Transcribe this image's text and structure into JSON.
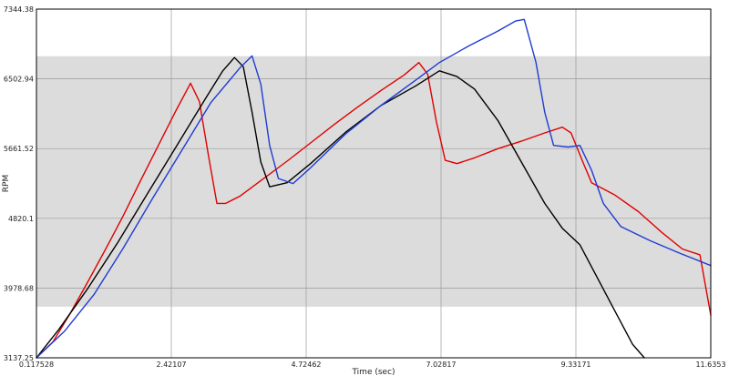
{
  "chart_data": {
    "type": "line",
    "title": "",
    "xlabel": "Time (sec)",
    "ylabel": "RPM",
    "xlim": [
      0.117528,
      11.6353
    ],
    "ylim": [
      3137.25,
      7344.38
    ],
    "x_ticks": [
      "0.117528",
      "2.42107",
      "4.72462",
      "7.02817",
      "9.33171",
      "11.6353"
    ],
    "y_ticks": [
      "3137.25",
      "3978.68",
      "4820.1",
      "5661.52",
      "6502.94",
      "7344.38"
    ],
    "grid": true,
    "band_range": [
      3754,
      6776
    ],
    "colors": {
      "background": "#ffffff",
      "band": "#dcdcdc",
      "grid": "#9a9a9a",
      "red": "#e00000",
      "black": "#000000",
      "blue": "#1e3cd2"
    },
    "series": [
      {
        "color_key": "red",
        "x": [
          0.117528,
          0.4,
          0.7,
          1.0,
          1.3,
          1.6,
          1.9,
          2.2,
          2.5,
          2.75,
          2.9,
          3.05,
          3.2,
          3.35,
          3.6,
          4.0,
          4.4,
          4.8,
          5.2,
          5.6,
          6.0,
          6.4,
          6.65,
          6.8,
          6.95,
          7.1,
          7.3,
          7.6,
          8.0,
          8.4,
          8.8,
          9.1,
          9.25,
          9.45,
          9.6,
          10.0,
          10.4,
          10.8,
          11.15,
          11.45,
          11.6353
        ],
        "y": [
          3137,
          3330,
          3680,
          4060,
          4450,
          4850,
          5280,
          5700,
          6120,
          6450,
          6230,
          5600,
          5000,
          5000,
          5090,
          5300,
          5510,
          5730,
          5950,
          6160,
          6360,
          6550,
          6700,
          6560,
          5980,
          5520,
          5480,
          5550,
          5660,
          5750,
          5850,
          5920,
          5850,
          5500,
          5250,
          5100,
          4900,
          4650,
          4450,
          4380,
          3650
        ]
      },
      {
        "color_key": "black",
        "x": [
          0.117528,
          0.5,
          1.0,
          1.5,
          2.0,
          2.5,
          3.0,
          3.3,
          3.5,
          3.65,
          3.8,
          3.95,
          4.1,
          4.4,
          4.8,
          5.4,
          6.0,
          6.6,
          7.0,
          7.3,
          7.6,
          8.0,
          8.4,
          8.8,
          9.1,
          9.4,
          9.7,
          10.0,
          10.3,
          10.5
        ],
        "y": [
          3137,
          3480,
          3980,
          4520,
          5100,
          5680,
          6260,
          6600,
          6760,
          6650,
          6100,
          5500,
          5200,
          5250,
          5480,
          5860,
          6180,
          6420,
          6600,
          6530,
          6380,
          6000,
          5500,
          5000,
          4700,
          4500,
          4100,
          3700,
          3300,
          3137
        ]
      },
      {
        "color_key": "blue",
        "x": [
          0.117528,
          0.6,
          1.1,
          1.6,
          2.1,
          2.6,
          3.1,
          3.6,
          3.8,
          3.95,
          4.1,
          4.25,
          4.5,
          4.8,
          5.4,
          6.0,
          6.6,
          7.0,
          7.5,
          8.0,
          8.3,
          8.45,
          8.65,
          8.8,
          8.95,
          9.2,
          9.4,
          9.6,
          9.8,
          10.1,
          10.6,
          11.1,
          11.6353
        ],
        "y": [
          3137,
          3460,
          3900,
          4460,
          5060,
          5640,
          6220,
          6640,
          6780,
          6440,
          5700,
          5300,
          5240,
          5430,
          5840,
          6180,
          6490,
          6700,
          6900,
          7080,
          7200,
          7220,
          6700,
          6100,
          5700,
          5680,
          5700,
          5400,
          5000,
          4720,
          4550,
          4400,
          4250
        ]
      }
    ]
  }
}
